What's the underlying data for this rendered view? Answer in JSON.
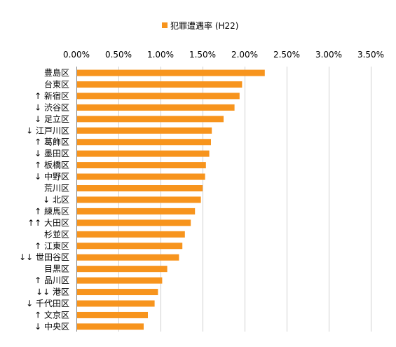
{
  "chart_data": {
    "type": "bar",
    "orientation": "horizontal",
    "title": "",
    "xlabel": "",
    "ylabel": "",
    "xlim": [
      0,
      3.5
    ],
    "ticks": [
      0,
      0.5,
      1.0,
      1.5,
      2.0,
      2.5,
      3.0,
      3.5
    ],
    "tick_labels": [
      "0.00%",
      "0.50%",
      "1.00%",
      "1.50%",
      "2.00%",
      "2.50%",
      "3.00%",
      "3.50%"
    ],
    "grid": "vertical",
    "legend_position": "top",
    "color": "#f7941d",
    "series": [
      {
        "name": "犯罪遭遇率 (H22)",
        "values": [
          2.24,
          1.97,
          1.94,
          1.88,
          1.75,
          1.61,
          1.6,
          1.58,
          1.54,
          1.53,
          1.5,
          1.48,
          1.41,
          1.36,
          1.29,
          1.26,
          1.22,
          1.08,
          1.02,
          0.97,
          0.93,
          0.85,
          0.8
        ]
      }
    ],
    "categories": [
      "豊島区",
      "台東区",
      "↑ 新宿区",
      "↓ 渋谷区",
      "↓ 足立区",
      "↓ 江戸川区",
      "↑ 葛飾区",
      "↓ 墨田区",
      "↑ 板橋区",
      "↓ 中野区",
      "荒川区",
      "↓ 北区",
      "↑ 練馬区",
      "↑↑ 大田区",
      "杉並区",
      "↑ 江東区",
      "↓↓ 世田谷区",
      "目黒区",
      "↑ 品川区",
      "↓↓ 港区",
      "↓ 千代田区",
      "↑ 文京区",
      "↓ 中央区"
    ]
  }
}
